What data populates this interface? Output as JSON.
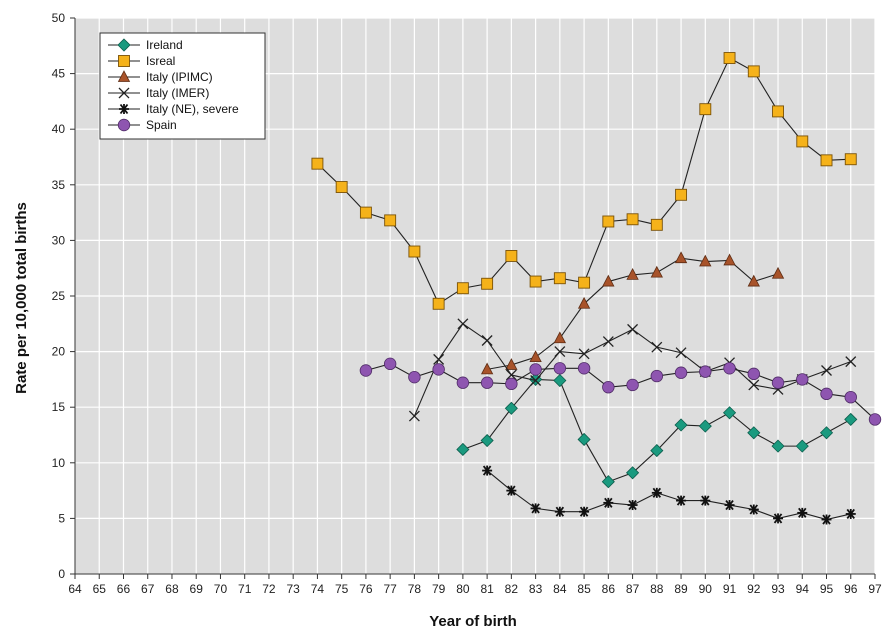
{
  "chart_data": {
    "type": "line",
    "title": "",
    "xlabel": "Year of birth",
    "ylabel": "Rate per 10,000 total births",
    "x_ticks": [
      "64",
      "65",
      "66",
      "67",
      "68",
      "69",
      "70",
      "71",
      "72",
      "73",
      "74",
      "75",
      "76",
      "77",
      "78",
      "79",
      "80",
      "81",
      "82",
      "83",
      "84",
      "85",
      "86",
      "87",
      "88",
      "89",
      "90",
      "91",
      "92",
      "93",
      "94",
      "95",
      "96",
      "97"
    ],
    "y_ticks": [
      "0",
      "5",
      "10",
      "15",
      "20",
      "25",
      "30",
      "35",
      "40",
      "45",
      "50"
    ],
    "xlim": [
      64,
      97
    ],
    "ylim": [
      0,
      50
    ],
    "grid": true,
    "legend_position": "top-left",
    "series": [
      {
        "name": "Ireland",
        "color": "#1a9a7f",
        "marker": "diamond",
        "points": [
          [
            80,
            11.2
          ],
          [
            81,
            12.0
          ],
          [
            82,
            14.9
          ],
          [
            83,
            17.5
          ],
          [
            84,
            17.4
          ],
          [
            85,
            12.1
          ],
          [
            86,
            8.3
          ],
          [
            87,
            9.1
          ],
          [
            88,
            11.1
          ],
          [
            89,
            13.4
          ],
          [
            90,
            13.3
          ],
          [
            91,
            14.5
          ],
          [
            92,
            12.7
          ],
          [
            93,
            11.5
          ],
          [
            94,
            11.5
          ],
          [
            95,
            12.7
          ],
          [
            96,
            13.9
          ]
        ]
      },
      {
        "name": "Isreal",
        "color": "#f5b21a",
        "marker": "square",
        "points": [
          [
            74,
            36.9
          ],
          [
            75,
            34.8
          ],
          [
            76,
            32.5
          ],
          [
            77,
            31.8
          ],
          [
            78,
            29.0
          ],
          [
            79,
            24.3
          ],
          [
            80,
            25.7
          ],
          [
            81,
            26.1
          ],
          [
            82,
            28.6
          ],
          [
            83,
            26.3
          ],
          [
            84,
            26.6
          ],
          [
            85,
            26.2
          ],
          [
            86,
            31.7
          ],
          [
            87,
            31.9
          ],
          [
            88,
            31.4
          ],
          [
            89,
            34.1
          ],
          [
            90,
            41.8
          ],
          [
            91,
            46.4
          ],
          [
            92,
            45.2
          ],
          [
            93,
            41.6
          ],
          [
            94,
            38.9
          ],
          [
            95,
            37.2
          ],
          [
            96,
            37.3
          ]
        ]
      },
      {
        "name": "Italy (IPIMC)",
        "color": "#a8532a",
        "marker": "triangle",
        "points": [
          [
            81,
            18.4
          ],
          [
            82,
            18.8
          ],
          [
            83,
            19.5
          ],
          [
            84,
            21.2
          ],
          [
            85,
            24.3
          ],
          [
            86,
            26.3
          ],
          [
            87,
            26.9
          ],
          [
            88,
            27.1
          ],
          [
            89,
            28.4
          ],
          [
            90,
            28.1
          ],
          [
            91,
            28.2
          ],
          [
            92,
            26.3
          ],
          [
            93,
            27.0
          ]
        ]
      },
      {
        "name": "Italy (IMER)",
        "color": "#222222",
        "marker": "x",
        "points": [
          [
            78,
            14.2
          ],
          [
            79,
            19.3
          ],
          [
            80,
            22.5
          ],
          [
            81,
            21.0
          ],
          [
            82,
            17.9
          ],
          [
            83,
            17.4
          ],
          [
            84,
            20.0
          ],
          [
            85,
            19.8
          ],
          [
            86,
            20.9
          ],
          [
            87,
            22.0
          ],
          [
            88,
            20.4
          ],
          [
            89,
            19.9
          ],
          [
            90,
            18.2
          ],
          [
            91,
            19.0
          ],
          [
            92,
            17.0
          ],
          [
            93,
            16.6
          ],
          [
            94,
            17.5
          ],
          [
            95,
            18.3
          ],
          [
            96,
            19.1
          ]
        ]
      },
      {
        "name": "Italy (NE), severe",
        "color": "#111111",
        "marker": "asterisk",
        "points": [
          [
            81,
            9.3
          ],
          [
            82,
            7.5
          ],
          [
            83,
            5.9
          ],
          [
            84,
            5.6
          ],
          [
            85,
            5.6
          ],
          [
            86,
            6.4
          ],
          [
            87,
            6.2
          ],
          [
            88,
            7.3
          ],
          [
            89,
            6.6
          ],
          [
            90,
            6.6
          ],
          [
            91,
            6.2
          ],
          [
            92,
            5.8
          ],
          [
            93,
            5.0
          ],
          [
            94,
            5.5
          ],
          [
            95,
            4.9
          ],
          [
            96,
            5.4
          ]
        ]
      },
      {
        "name": "Spain",
        "color": "#8e55b0",
        "marker": "circle",
        "points": [
          [
            76,
            18.3
          ],
          [
            77,
            18.9
          ],
          [
            78,
            17.7
          ],
          [
            79,
            18.4
          ],
          [
            80,
            17.2
          ],
          [
            81,
            17.2
          ],
          [
            82,
            17.1
          ],
          [
            83,
            18.4
          ],
          [
            84,
            18.5
          ],
          [
            85,
            18.5
          ],
          [
            86,
            16.8
          ],
          [
            87,
            17.0
          ],
          [
            88,
            17.8
          ],
          [
            89,
            18.1
          ],
          [
            90,
            18.2
          ],
          [
            91,
            18.5
          ],
          [
            92,
            18.0
          ],
          [
            93,
            17.2
          ],
          [
            94,
            17.5
          ],
          [
            95,
            16.2
          ],
          [
            96,
            15.9
          ],
          [
            97,
            13.9
          ]
        ]
      }
    ]
  }
}
